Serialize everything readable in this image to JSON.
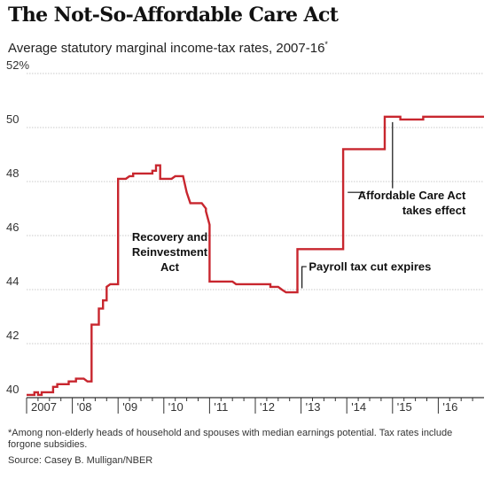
{
  "header": {
    "title": "The Not-So-Affordable Care Act",
    "subtitle": "Average statutory marginal income-tax rates, 2007-16",
    "subtitle_mark": "*"
  },
  "footer": {
    "footnote": "*Among non-elderly heads of household and spouses with median earnings potential. Tax rates include forgone subsidies.",
    "source": "Source: Casey B. Mulligan/NBER"
  },
  "colors": {
    "line": "#c8262e",
    "grid": "#c9c9c9",
    "axis": "#333333"
  },
  "chart_data": {
    "type": "line",
    "title": "The Not-So-Affordable Care Act",
    "subtitle": "Average statutory marginal income-tax rates, 2007-16*",
    "xlabel": "",
    "ylabel": "",
    "xlim": [
      2007,
      2017
    ],
    "ylim": [
      40,
      52
    ],
    "y_ticks": [
      40,
      42,
      44,
      46,
      48,
      50,
      52
    ],
    "y_tick_labels": [
      "40",
      "42",
      "44",
      "46",
      "48",
      "50",
      "52%"
    ],
    "x_ticks": [
      2007,
      2008,
      2009,
      2010,
      2011,
      2012,
      2013,
      2014,
      2015,
      2016
    ],
    "x_tick_labels": [
      "2007",
      "'08",
      "'09",
      "'10",
      "'11",
      "'12",
      "'13",
      "'14",
      "'15",
      "'16"
    ],
    "grid": true,
    "series": [
      {
        "values": [
          [
            2007.0,
            40.1
          ],
          [
            2007.17,
            40.1
          ],
          [
            2007.17,
            40.2
          ],
          [
            2007.25,
            40.2
          ],
          [
            2007.25,
            40.1
          ],
          [
            2007.33,
            40.1
          ],
          [
            2007.33,
            40.2
          ],
          [
            2007.58,
            40.2
          ],
          [
            2007.58,
            40.4
          ],
          [
            2007.67,
            40.4
          ],
          [
            2007.67,
            40.5
          ],
          [
            2007.92,
            40.5
          ],
          [
            2007.92,
            40.6
          ],
          [
            2008.08,
            40.6
          ],
          [
            2008.08,
            40.7
          ],
          [
            2008.25,
            40.7
          ],
          [
            2008.33,
            40.6
          ],
          [
            2008.42,
            40.6
          ],
          [
            2008.42,
            42.7
          ],
          [
            2008.58,
            42.7
          ],
          [
            2008.58,
            43.3
          ],
          [
            2008.67,
            43.3
          ],
          [
            2008.67,
            43.6
          ],
          [
            2008.75,
            43.6
          ],
          [
            2008.75,
            44.1
          ],
          [
            2008.83,
            44.2
          ],
          [
            2009.0,
            44.2
          ],
          [
            2009.0,
            48.1
          ],
          [
            2009.17,
            48.1
          ],
          [
            2009.25,
            48.2
          ],
          [
            2009.33,
            48.2
          ],
          [
            2009.33,
            48.3
          ],
          [
            2009.75,
            48.3
          ],
          [
            2009.75,
            48.4
          ],
          [
            2009.83,
            48.4
          ],
          [
            2009.83,
            48.6
          ],
          [
            2009.92,
            48.6
          ],
          [
            2009.92,
            48.1
          ],
          [
            2010.17,
            48.1
          ],
          [
            2010.25,
            48.2
          ],
          [
            2010.42,
            48.2
          ],
          [
            2010.5,
            47.6
          ],
          [
            2010.58,
            47.2
          ],
          [
            2010.83,
            47.2
          ],
          [
            2010.92,
            47.0
          ],
          [
            2010.92,
            46.9
          ],
          [
            2011.0,
            46.4
          ],
          [
            2011.0,
            44.3
          ],
          [
            2011.5,
            44.3
          ],
          [
            2011.58,
            44.2
          ],
          [
            2012.33,
            44.2
          ],
          [
            2012.33,
            44.1
          ],
          [
            2012.5,
            44.1
          ],
          [
            2012.58,
            44.0
          ],
          [
            2012.67,
            43.9
          ],
          [
            2012.92,
            43.9
          ],
          [
            2012.92,
            45.5
          ],
          [
            2013.92,
            45.5
          ],
          [
            2013.92,
            49.2
          ],
          [
            2014.83,
            49.2
          ],
          [
            2014.83,
            50.4
          ],
          [
            2015.17,
            50.4
          ],
          [
            2015.17,
            50.3
          ],
          [
            2015.67,
            50.3
          ],
          [
            2015.67,
            50.4
          ],
          [
            2017.0,
            50.4
          ]
        ]
      }
    ],
    "annotations": [
      {
        "lines": [
          "Recovery and",
          "Reinvestment",
          "Act"
        ],
        "x": 2010.13,
        "y": 45.8,
        "anchor": "middle"
      },
      {
        "lines": [
          "Payroll tax cut expires"
        ],
        "x": 2013.17,
        "y": 44.7,
        "anchor": "start"
      },
      {
        "lines": [
          "Affordable Care Act",
          "takes effect"
        ],
        "x": 2016.6,
        "y": 47.35,
        "anchor": "end"
      }
    ]
  }
}
